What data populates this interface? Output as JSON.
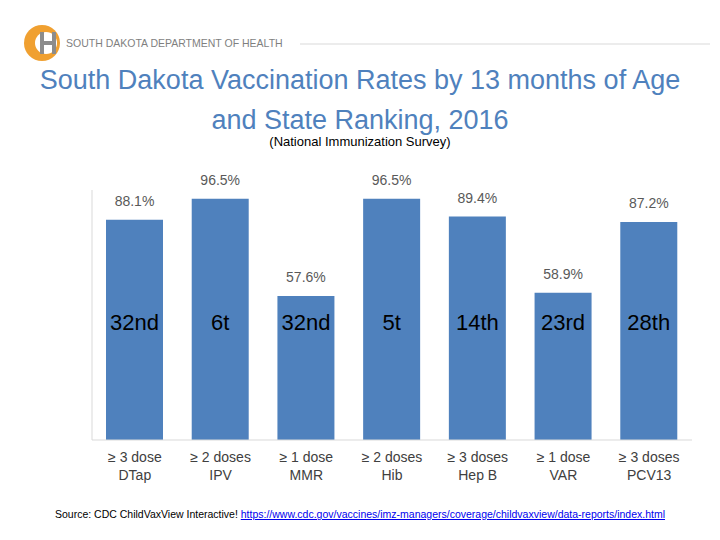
{
  "header": {
    "organization": "SOUTH DAKOTA DEPARTMENT OF HEALTH"
  },
  "chart_data": {
    "type": "bar",
    "title": "South Dakota Vaccination Rates by 13 months of Age and State Ranking, 2016",
    "subtitle": "(National Immunization Survey)",
    "categories": [
      "≥ 3 dose\nDTap",
      "≥ 2 doses\nIPV",
      "≥ 1 dose\nMMR",
      "≥ 2 doses\nHib",
      "≥ 3 doses\nHep B",
      "≥ 1 dose\nVAR",
      "≥ 3 doses\nPCV13"
    ],
    "values": [
      88.1,
      96.5,
      57.6,
      96.5,
      89.4,
      58.9,
      87.2
    ],
    "value_labels": [
      "88.1%",
      "96.5%",
      "57.6%",
      "96.5%",
      "89.4%",
      "58.9%",
      "87.2%"
    ],
    "annotations": [
      "32nd",
      "6t",
      "32nd",
      "5t",
      "14th",
      "23rd",
      "28th"
    ],
    "color": "#4f81bd",
    "ylim": [
      0,
      100
    ],
    "tick_labels": "x",
    "grid": false,
    "data_labels": true,
    "source": "Source: CDC ChildVaxView Interactive!",
    "source_url": "https://www.cdc.gov/vaccines/imz-managers/coverage/childvaxview/data-reports/index.html"
  }
}
